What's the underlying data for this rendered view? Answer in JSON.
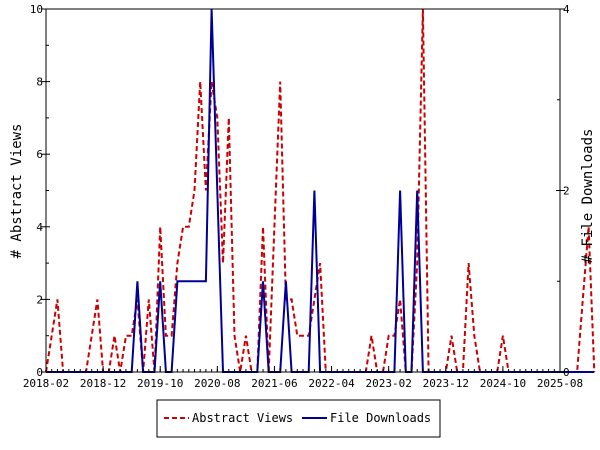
{
  "chart_data": {
    "type": "line",
    "x_axis": {
      "ticks": [
        "2018-02",
        "2018-12",
        "2019-10",
        "2020-08",
        "2021-06",
        "2022-04",
        "2023-02",
        "2023-12",
        "2024-10",
        "2025-08"
      ]
    },
    "y_left": {
      "label": "# Abstract Views",
      "ylim": [
        0,
        10
      ],
      "ticks": [
        "0",
        "2",
        "4",
        "6",
        "8",
        "10"
      ]
    },
    "y_right": {
      "label": "# File Downloads",
      "ylim": [
        0,
        4
      ],
      "ticks": [
        "0",
        "2",
        "4"
      ]
    },
    "series": [
      {
        "name": "Abstract Views",
        "axis": "left",
        "color": "#cc0000",
        "style": "dashed",
        "points": [
          [
            "2018-02",
            0
          ],
          [
            "2018-03",
            1
          ],
          [
            "2018-04",
            2
          ],
          [
            "2018-05",
            0
          ],
          [
            "2018-06",
            0
          ],
          [
            "2018-07",
            0
          ],
          [
            "2018-08",
            0
          ],
          [
            "2018-09",
            0
          ],
          [
            "2018-10",
            1
          ],
          [
            "2018-11",
            2
          ],
          [
            "2018-12",
            0
          ],
          [
            "2019-01",
            0
          ],
          [
            "2019-02",
            1
          ],
          [
            "2019-03",
            0
          ],
          [
            "2019-04",
            1
          ],
          [
            "2019-05",
            1
          ],
          [
            "2019-06",
            2
          ],
          [
            "2019-07",
            0
          ],
          [
            "2019-08",
            2
          ],
          [
            "2019-09",
            0
          ],
          [
            "2019-10",
            4
          ],
          [
            "2019-11",
            1
          ],
          [
            "2019-12",
            1
          ],
          [
            "2020-01",
            3
          ],
          [
            "2020-02",
            4
          ],
          [
            "2020-03",
            4
          ],
          [
            "2020-04",
            5
          ],
          [
            "2020-05",
            8
          ],
          [
            "2020-06",
            5
          ],
          [
            "2020-07",
            8
          ],
          [
            "2020-08",
            7
          ],
          [
            "2020-09",
            3
          ],
          [
            "2020-10",
            7
          ],
          [
            "2020-11",
            1
          ],
          [
            "2020-12",
            0
          ],
          [
            "2021-01",
            1
          ],
          [
            "2021-02",
            0
          ],
          [
            "2021-03",
            0
          ],
          [
            "2021-04",
            4
          ],
          [
            "2021-05",
            0
          ],
          [
            "2021-06",
            4
          ],
          [
            "2021-07",
            8
          ],
          [
            "2021-08",
            2
          ],
          [
            "2021-09",
            2
          ],
          [
            "2021-10",
            1
          ],
          [
            "2021-11",
            1
          ],
          [
            "2021-12",
            1
          ],
          [
            "2022-01",
            2
          ],
          [
            "2022-02",
            3
          ],
          [
            "2022-03",
            0
          ],
          [
            "2022-04",
            0
          ],
          [
            "2022-05",
            0
          ],
          [
            "2022-06",
            0
          ],
          [
            "2022-07",
            0
          ],
          [
            "2022-08",
            0
          ],
          [
            "2022-09",
            0
          ],
          [
            "2022-10",
            0
          ],
          [
            "2022-11",
            1
          ],
          [
            "2022-12",
            0
          ],
          [
            "2023-01",
            0
          ],
          [
            "2023-02",
            1
          ],
          [
            "2023-03",
            1
          ],
          [
            "2023-04",
            2
          ],
          [
            "2023-05",
            0
          ],
          [
            "2023-06",
            0
          ],
          [
            "2023-07",
            3
          ],
          [
            "2023-08",
            10
          ],
          [
            "2023-09",
            0
          ],
          [
            "2023-10",
            0
          ],
          [
            "2023-11",
            0
          ],
          [
            "2023-12",
            0
          ],
          [
            "2024-01",
            1
          ],
          [
            "2024-02",
            0
          ],
          [
            "2024-03",
            0
          ],
          [
            "2024-04",
            3
          ],
          [
            "2024-05",
            1
          ],
          [
            "2024-06",
            0
          ],
          [
            "2024-07",
            0
          ],
          [
            "2024-08",
            0
          ],
          [
            "2024-09",
            0
          ],
          [
            "2024-10",
            1
          ],
          [
            "2024-11",
            0
          ],
          [
            "2024-12",
            0
          ],
          [
            "2025-01",
            0
          ],
          [
            "2025-02",
            0
          ],
          [
            "2025-03",
            0
          ],
          [
            "2025-04",
            0
          ],
          [
            "2025-05",
            0
          ],
          [
            "2025-06",
            0
          ],
          [
            "2025-07",
            0
          ],
          [
            "2025-08",
            0
          ],
          [
            "2025-09",
            0
          ],
          [
            "2025-10",
            0
          ],
          [
            "2025-11",
            0
          ],
          [
            "2025-12",
            2
          ],
          [
            "2026-01",
            4
          ],
          [
            "2026-02",
            0
          ]
        ]
      },
      {
        "name": "File Downloads",
        "axis": "right",
        "color": "#000099",
        "style": "solid",
        "points": [
          [
            "2018-02",
            0
          ],
          [
            "2019-05",
            0
          ],
          [
            "2019-06",
            1
          ],
          [
            "2019-07",
            0
          ],
          [
            "2019-08",
            0
          ],
          [
            "2019-09",
            0
          ],
          [
            "2019-10",
            1
          ],
          [
            "2019-11",
            0
          ],
          [
            "2019-12",
            0
          ],
          [
            "2020-01",
            1
          ],
          [
            "2020-02",
            1
          ],
          [
            "2020-03",
            1
          ],
          [
            "2020-04",
            1
          ],
          [
            "2020-05",
            1
          ],
          [
            "2020-06",
            1
          ],
          [
            "2020-07",
            4
          ],
          [
            "2020-08",
            2
          ],
          [
            "2020-09",
            0
          ],
          [
            "2020-10",
            0
          ],
          [
            "2020-11",
            0
          ],
          [
            "2020-12",
            0
          ],
          [
            "2021-01",
            0
          ],
          [
            "2021-02",
            0
          ],
          [
            "2021-03",
            0
          ],
          [
            "2021-04",
            1
          ],
          [
            "2021-05",
            0
          ],
          [
            "2021-06",
            0
          ],
          [
            "2021-07",
            0
          ],
          [
            "2021-08",
            1
          ],
          [
            "2021-09",
            0
          ],
          [
            "2021-10",
            0
          ],
          [
            "2021-11",
            0
          ],
          [
            "2021-12",
            0
          ],
          [
            "2022-01",
            2
          ],
          [
            "2022-02",
            0
          ],
          [
            "2022-03",
            0
          ],
          [
            "2022-04",
            0
          ],
          [
            "2022-05",
            0
          ],
          [
            "2022-06",
            0
          ],
          [
            "2022-07",
            0
          ],
          [
            "2022-08",
            0
          ],
          [
            "2022-09",
            0
          ],
          [
            "2022-10",
            0
          ],
          [
            "2022-11",
            0
          ],
          [
            "2022-12",
            0
          ],
          [
            "2023-01",
            0
          ],
          [
            "2023-02",
            0
          ],
          [
            "2023-03",
            0
          ],
          [
            "2023-04",
            2
          ],
          [
            "2023-05",
            0
          ],
          [
            "2023-06",
            0
          ],
          [
            "2023-07",
            2
          ],
          [
            "2023-08",
            0
          ],
          [
            "2023-09",
            0
          ],
          [
            "2026-02",
            0
          ]
        ]
      }
    ],
    "grid": false,
    "legend_position": "bottom-center"
  }
}
